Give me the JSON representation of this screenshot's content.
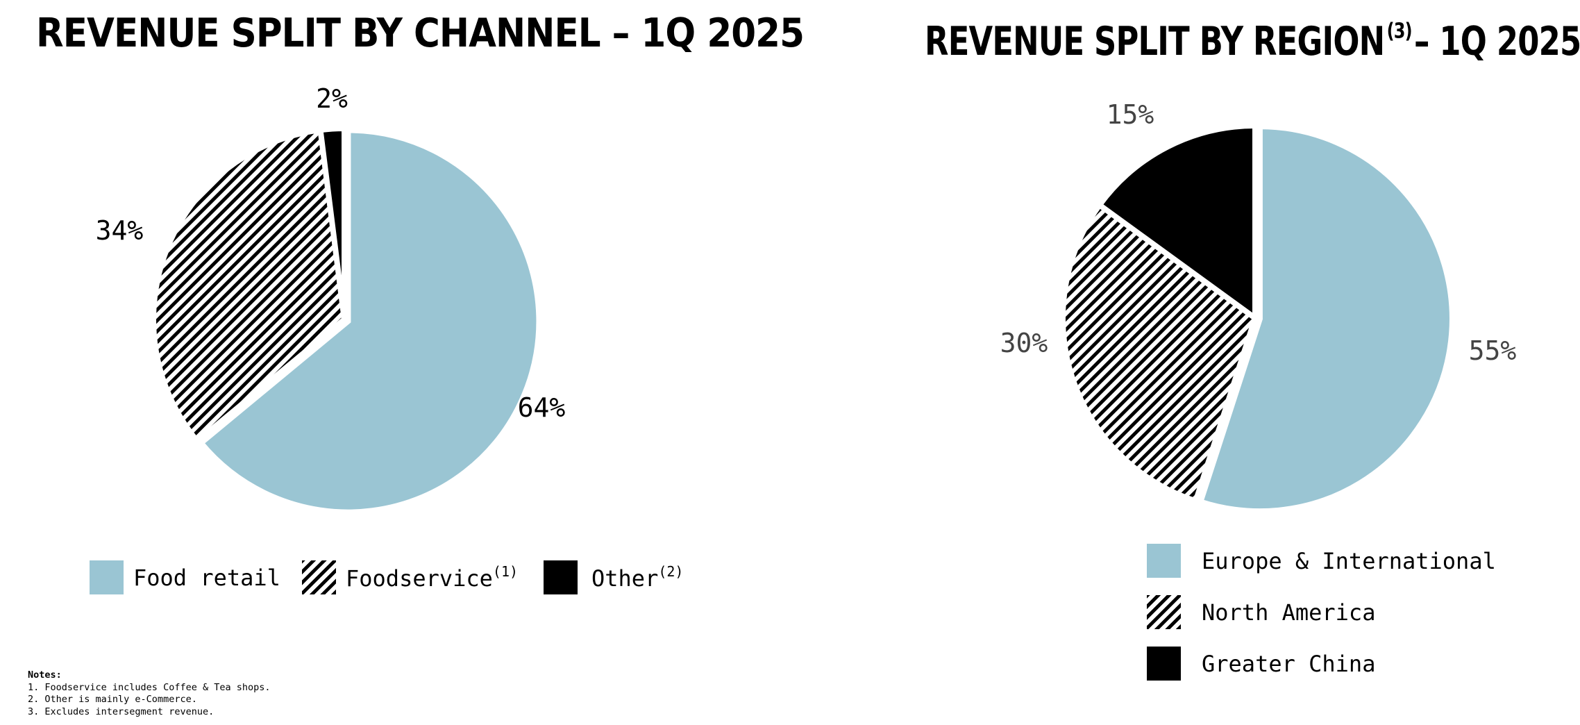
{
  "notes": {
    "heading": "Notes:",
    "items": [
      "1. Foodservice includes Coffee & Tea shops.",
      "2. Other is mainly e-Commerce.",
      "3. Excludes intersegment revenue."
    ]
  },
  "colors": {
    "light_blue": "#9ac5d3",
    "black": "#000000",
    "hatch": "black diagonal stripes on white",
    "label_dark": "#000000",
    "label_gray": "#444444"
  },
  "chart_data": [
    {
      "type": "pie",
      "title": "REVENUE SPLIT BY CHANNEL",
      "title_suffix": "– 1Q 2025",
      "title_footnote": "",
      "start": "12 o'clock, clockwise",
      "categories": [
        "Food retail",
        "Foodservice",
        "Other"
      ],
      "footnotes": [
        "",
        "(1)",
        "(2)"
      ],
      "values": [
        64,
        34,
        2
      ],
      "unit": "%",
      "data_labels": [
        "64%",
        "34%",
        "2%"
      ],
      "fills": [
        "light_blue",
        "hatch",
        "black"
      ],
      "legend_position": "bottom"
    },
    {
      "type": "pie",
      "title": "REVENUE SPLIT BY REGION",
      "title_suffix": "– 1Q 2025",
      "title_footnote": "(3)",
      "start": "12 o'clock, clockwise",
      "categories": [
        "Europe & International",
        "North America",
        "Greater China"
      ],
      "footnotes": [
        "",
        "",
        ""
      ],
      "values": [
        55,
        30,
        15
      ],
      "unit": "%",
      "data_labels": [
        "55%",
        "30%",
        "15%"
      ],
      "fills": [
        "light_blue",
        "hatch",
        "black"
      ],
      "legend_position": "bottom"
    }
  ]
}
